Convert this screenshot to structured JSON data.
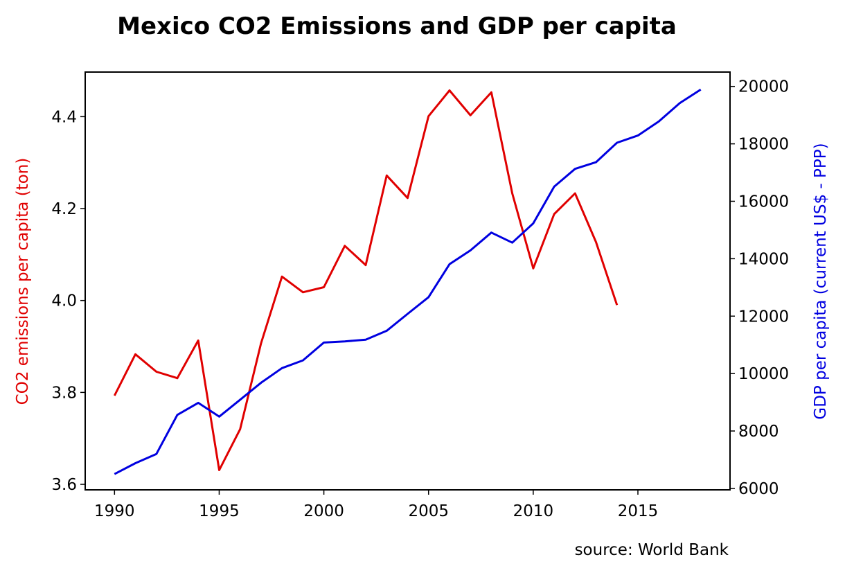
{
  "chart_data": {
    "type": "line",
    "title": "Mexico CO2 Emissions and GDP per capita",
    "source": "source: World Bank",
    "x_ticks": [
      1990,
      1995,
      2000,
      2005,
      2010,
      2015
    ],
    "xlim": [
      1988.6,
      2019.4
    ],
    "left_axis": {
      "label": "CO2 emissions per capita (ton)",
      "color": "#e00000",
      "ylim": [
        3.588,
        4.497
      ],
      "ticks": [
        "3.6",
        "3.8",
        "4.0",
        "4.2",
        "4.4"
      ]
    },
    "right_axis": {
      "label": "GDP per capita (current US$ - PPP)",
      "color": "#0000e0",
      "ylim": [
        5950,
        20500
      ],
      "ticks": [
        "6000",
        "8000",
        "10000",
        "12000",
        "14000",
        "16000",
        "18000",
        "20000"
      ]
    },
    "series": [
      {
        "axis": "left",
        "color": "#e00000",
        "x": [
          1990,
          1991,
          1992,
          1993,
          1994,
          1995,
          1996,
          1997,
          1998,
          1999,
          2000,
          2001,
          2002,
          2003,
          2004,
          2005,
          2006,
          2007,
          2008,
          2009,
          2010,
          2011,
          2012,
          2013,
          2014
        ],
        "values": [
          3.793,
          3.883,
          3.845,
          3.831,
          3.913,
          3.631,
          3.72,
          3.907,
          4.052,
          4.018,
          4.029,
          4.119,
          4.077,
          4.272,
          4.223,
          4.401,
          4.457,
          4.403,
          4.453,
          4.233,
          4.07,
          4.188,
          4.233,
          4.127,
          3.99
        ]
      },
      {
        "axis": "right",
        "color": "#0000e0",
        "x": [
          1990,
          1991,
          1992,
          1993,
          1994,
          1995,
          1996,
          1997,
          1998,
          1999,
          2000,
          2001,
          2002,
          2003,
          2004,
          2005,
          2006,
          2007,
          2008,
          2009,
          2010,
          2011,
          2012,
          2013,
          2014,
          2015,
          2016,
          2017,
          2018
        ],
        "values": [
          6500,
          6880,
          7200,
          8560,
          8980,
          8500,
          9090,
          9680,
          10190,
          10460,
          11080,
          11120,
          11180,
          11490,
          12080,
          12660,
          13810,
          14290,
          14910,
          14560,
          15230,
          16510,
          17130,
          17360,
          18040,
          18290,
          18780,
          19420,
          19890
        ]
      }
    ]
  }
}
